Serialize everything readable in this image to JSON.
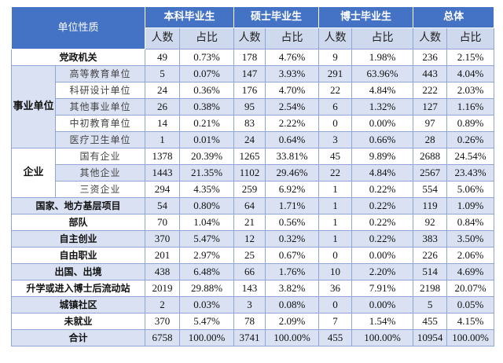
{
  "header": {
    "unit_type": "单位性质",
    "groups": [
      "本科毕业生",
      "硕士毕业生",
      "博士毕业生",
      "总体"
    ],
    "count_label": "人数",
    "ratio_label": "占比"
  },
  "rows": [
    {
      "label": "党政机关",
      "values": [
        "49",
        "0.73%",
        "178",
        "4.76%",
        "9",
        "1.98%",
        "236",
        "2.15%"
      ]
    },
    {
      "category": "事业单位",
      "sub": "高等教育单位",
      "values": [
        "5",
        "0.07%",
        "147",
        "3.93%",
        "291",
        "63.96%",
        "443",
        "4.04%"
      ]
    },
    {
      "category": "事业单位",
      "sub": "科研设计单位",
      "values": [
        "24",
        "0.36%",
        "176",
        "4.70%",
        "22",
        "4.84%",
        "222",
        "2.03%"
      ]
    },
    {
      "category": "事业单位",
      "sub": "其他事业单位",
      "values": [
        "26",
        "0.38%",
        "95",
        "2.54%",
        "6",
        "1.32%",
        "127",
        "1.16%"
      ]
    },
    {
      "category": "事业单位",
      "sub": "中初教育单位",
      "values": [
        "14",
        "0.21%",
        "83",
        "2.22%",
        "0",
        "0.00%",
        "97",
        "0.89%"
      ]
    },
    {
      "category": "事业单位",
      "sub": "医疗卫生单位",
      "values": [
        "1",
        "0.01%",
        "24",
        "0.64%",
        "3",
        "0.66%",
        "28",
        "0.26%"
      ]
    },
    {
      "category": "企业",
      "sub": "国有企业",
      "values": [
        "1378",
        "20.39%",
        "1265",
        "33.81%",
        "45",
        "9.89%",
        "2688",
        "24.54%"
      ]
    },
    {
      "category": "企业",
      "sub": "其他企业",
      "values": [
        "1443",
        "21.35%",
        "1102",
        "29.46%",
        "22",
        "4.84%",
        "2567",
        "23.43%"
      ]
    },
    {
      "category": "企业",
      "sub": "三资企业",
      "values": [
        "294",
        "4.35%",
        "259",
        "6.92%",
        "1",
        "0.22%",
        "554",
        "5.06%"
      ]
    },
    {
      "label": "国家、地方基层项目",
      "values": [
        "54",
        "0.80%",
        "64",
        "1.71%",
        "1",
        "0.22%",
        "119",
        "1.09%"
      ]
    },
    {
      "label": "部队",
      "values": [
        "70",
        "1.04%",
        "21",
        "0.56%",
        "1",
        "0.22%",
        "92",
        "0.84%"
      ]
    },
    {
      "label": "自主创业",
      "values": [
        "370",
        "5.47%",
        "12",
        "0.32%",
        "1",
        "0.22%",
        "383",
        "3.50%"
      ]
    },
    {
      "label": "自由职业",
      "values": [
        "201",
        "2.97%",
        "25",
        "0.67%",
        "0",
        "0.00%",
        "226",
        "2.06%"
      ]
    },
    {
      "label": "出国、出境",
      "values": [
        "438",
        "6.48%",
        "66",
        "1.76%",
        "10",
        "2.20%",
        "514",
        "4.69%"
      ]
    },
    {
      "label": "升学或进入博士后流动站",
      "values": [
        "2019",
        "29.88%",
        "143",
        "3.82%",
        "36",
        "7.91%",
        "2198",
        "20.07%"
      ]
    },
    {
      "label": "城镇社区",
      "values": [
        "2",
        "0.03%",
        "3",
        "0.08%",
        "0",
        "0.00%",
        "5",
        "0.05%"
      ]
    },
    {
      "label": "未就业",
      "values": [
        "370",
        "5.47%",
        "78",
        "2.09%",
        "7",
        "1.54%",
        "455",
        "4.15%"
      ]
    },
    {
      "label": "合计",
      "values": [
        "6758",
        "100.00%",
        "3741",
        "100.00%",
        "455",
        "100.00%",
        "10954",
        "100.00%"
      ]
    }
  ],
  "colors": {
    "header": "#4472c4",
    "stripe": "#d9e1f2",
    "subheader": "#cfd9ee"
  }
}
